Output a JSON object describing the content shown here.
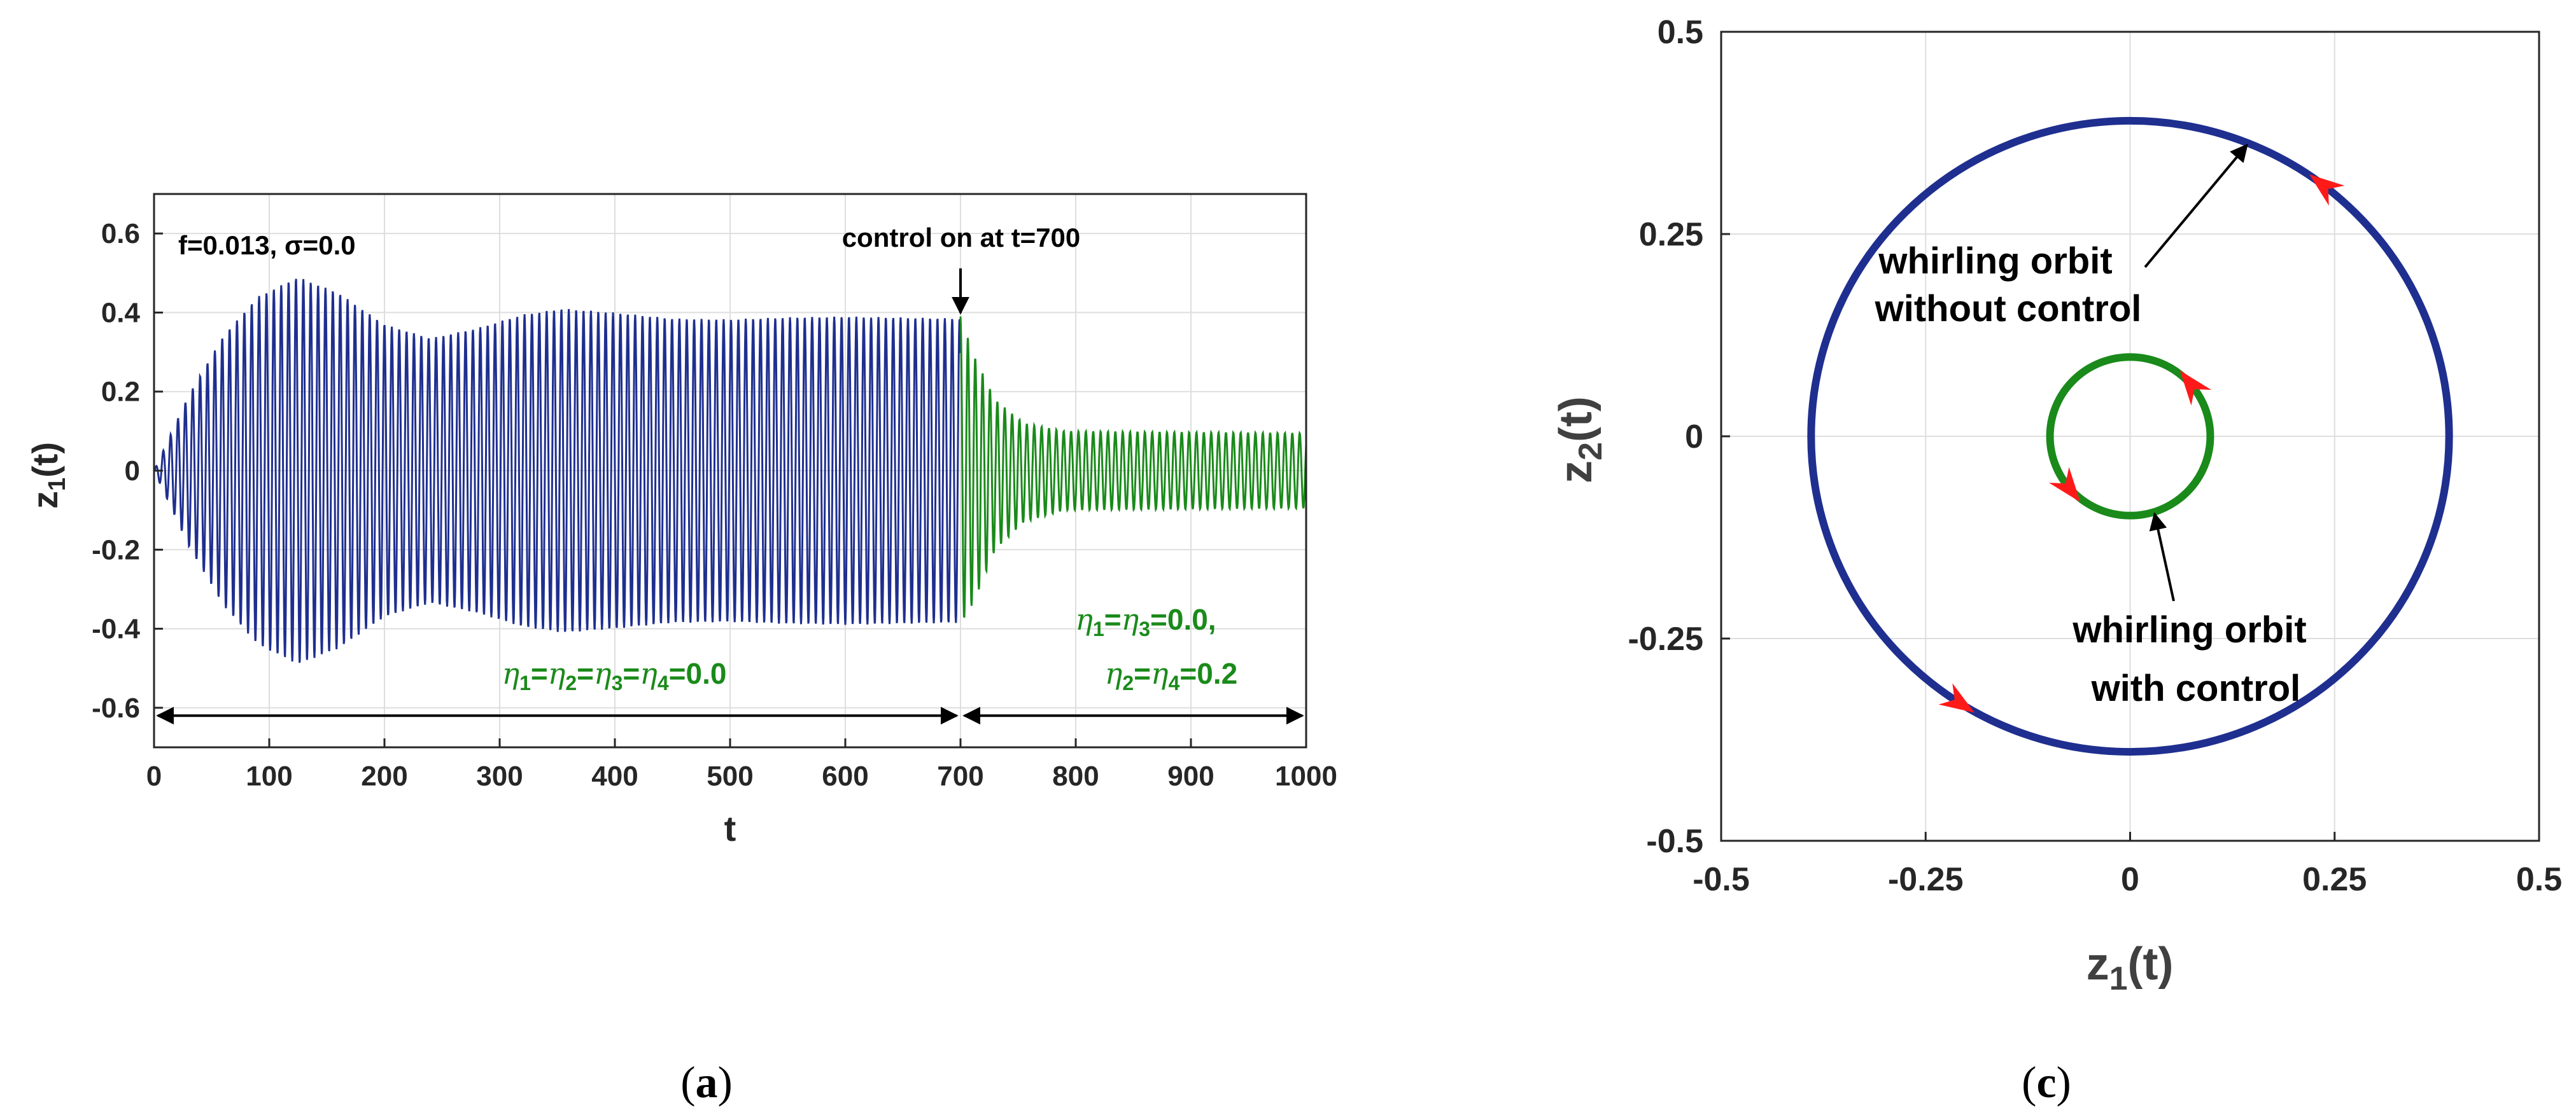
{
  "chart_data": [
    {
      "type": "line",
      "panel_label": "a",
      "xlabel": "t",
      "ylabel": "z1(t)",
      "xlim": [
        0,
        1000
      ],
      "ylim": [
        -0.7,
        0.7
      ],
      "xticks": [
        0,
        100,
        200,
        300,
        400,
        500,
        600,
        700,
        800,
        900,
        1000
      ],
      "yticks": [
        0.6,
        0.4,
        0.2,
        0,
        -0.2,
        -0.4,
        -0.6
      ],
      "ytick_labels": [
        "0.6",
        "0.4",
        "0.2",
        "0",
        "-0.2",
        "-0.4",
        "-0.6"
      ],
      "grid": true,
      "series": [
        {
          "color": "#1f2f8f",
          "t_range": [
            0,
            700
          ],
          "envelope": [
            {
              "t": 0,
              "amp": 0.0
            },
            {
              "t": 30,
              "amp": 0.19
            },
            {
              "t": 60,
              "amp": 0.34
            },
            {
              "t": 90,
              "amp": 0.44
            },
            {
              "t": 125,
              "amp": 0.49
            },
            {
              "t": 160,
              "amp": 0.45
            },
            {
              "t": 200,
              "amp": 0.37
            },
            {
              "t": 240,
              "amp": 0.335
            },
            {
              "t": 280,
              "amp": 0.36
            },
            {
              "t": 320,
              "amp": 0.395
            },
            {
              "t": 355,
              "amp": 0.41
            },
            {
              "t": 400,
              "amp": 0.4
            },
            {
              "t": 450,
              "amp": 0.385
            },
            {
              "t": 500,
              "amp": 0.383
            },
            {
              "t": 550,
              "amp": 0.388
            },
            {
              "t": 600,
              "amp": 0.39
            },
            {
              "t": 700,
              "amp": 0.385
            }
          ]
        },
        {
          "color": "#1a8a1a",
          "t_range": [
            700,
            1000
          ],
          "envelope_upper": [
            {
              "t": 700,
              "amp": 0.39
            },
            {
              "t": 712,
              "amp": 0.29
            },
            {
              "t": 730,
              "amp": 0.18
            },
            {
              "t": 755,
              "amp": 0.12
            },
            {
              "t": 790,
              "amp": 0.1
            },
            {
              "t": 1000,
              "amp": 0.095
            }
          ],
          "envelope_lower": [
            {
              "t": 700,
              "amp": -0.39
            },
            {
              "t": 712,
              "amp": -0.33
            },
            {
              "t": 730,
              "amp": -0.2
            },
            {
              "t": 755,
              "amp": -0.13
            },
            {
              "t": 790,
              "amp": -0.1
            },
            {
              "t": 1000,
              "amp": -0.095
            }
          ]
        }
      ],
      "annotations": {
        "params": "f=0.013, σ=0.0",
        "control": "control on at t=700",
        "before": "η1=η2=η3=η4=0.0",
        "after_line1": "η1=η3=0.0,",
        "after_line2": "η2=η4=0.2",
        "arrow_span_before": [
          0,
          700
        ],
        "arrow_span_after": [
          700,
          1000
        ]
      }
    },
    {
      "type": "line",
      "panel_label": "c",
      "xlabel": "z1(t)",
      "ylabel": "z2(t)",
      "xlim": [
        -0.5,
        0.5
      ],
      "ylim": [
        -0.5,
        0.5
      ],
      "xticks": [
        -0.5,
        -0.25,
        0,
        0.25,
        0.5
      ],
      "xtick_labels": [
        "-0.5",
        "-0.25",
        "0",
        "0.25",
        "0.5"
      ],
      "yticks": [
        0.5,
        0.25,
        0,
        -0.25,
        -0.5
      ],
      "ytick_labels": [
        "0.5",
        "0.25",
        "0",
        "-0.25",
        "-0.5"
      ],
      "grid": true,
      "series": [
        {
          "color": "#1f2f8f",
          "shape": "circle",
          "center": [
            0,
            0
          ],
          "radius": 0.39
        },
        {
          "color": "#1a8a1a",
          "shape": "circle",
          "center": [
            0,
            0
          ],
          "radius": 0.098
        }
      ],
      "direction_arrows_color": "#ff1a1a",
      "annotations": {
        "without_line1": "whirling orbit",
        "without_line2": "without control",
        "with_line1": "whirling orbit",
        "with_line2": "with control"
      }
    }
  ],
  "captions": {
    "left_open": "(",
    "left_letter": "a",
    "left_close": ")",
    "right_open": "(",
    "right_letter": "c",
    "right_close": ")"
  }
}
